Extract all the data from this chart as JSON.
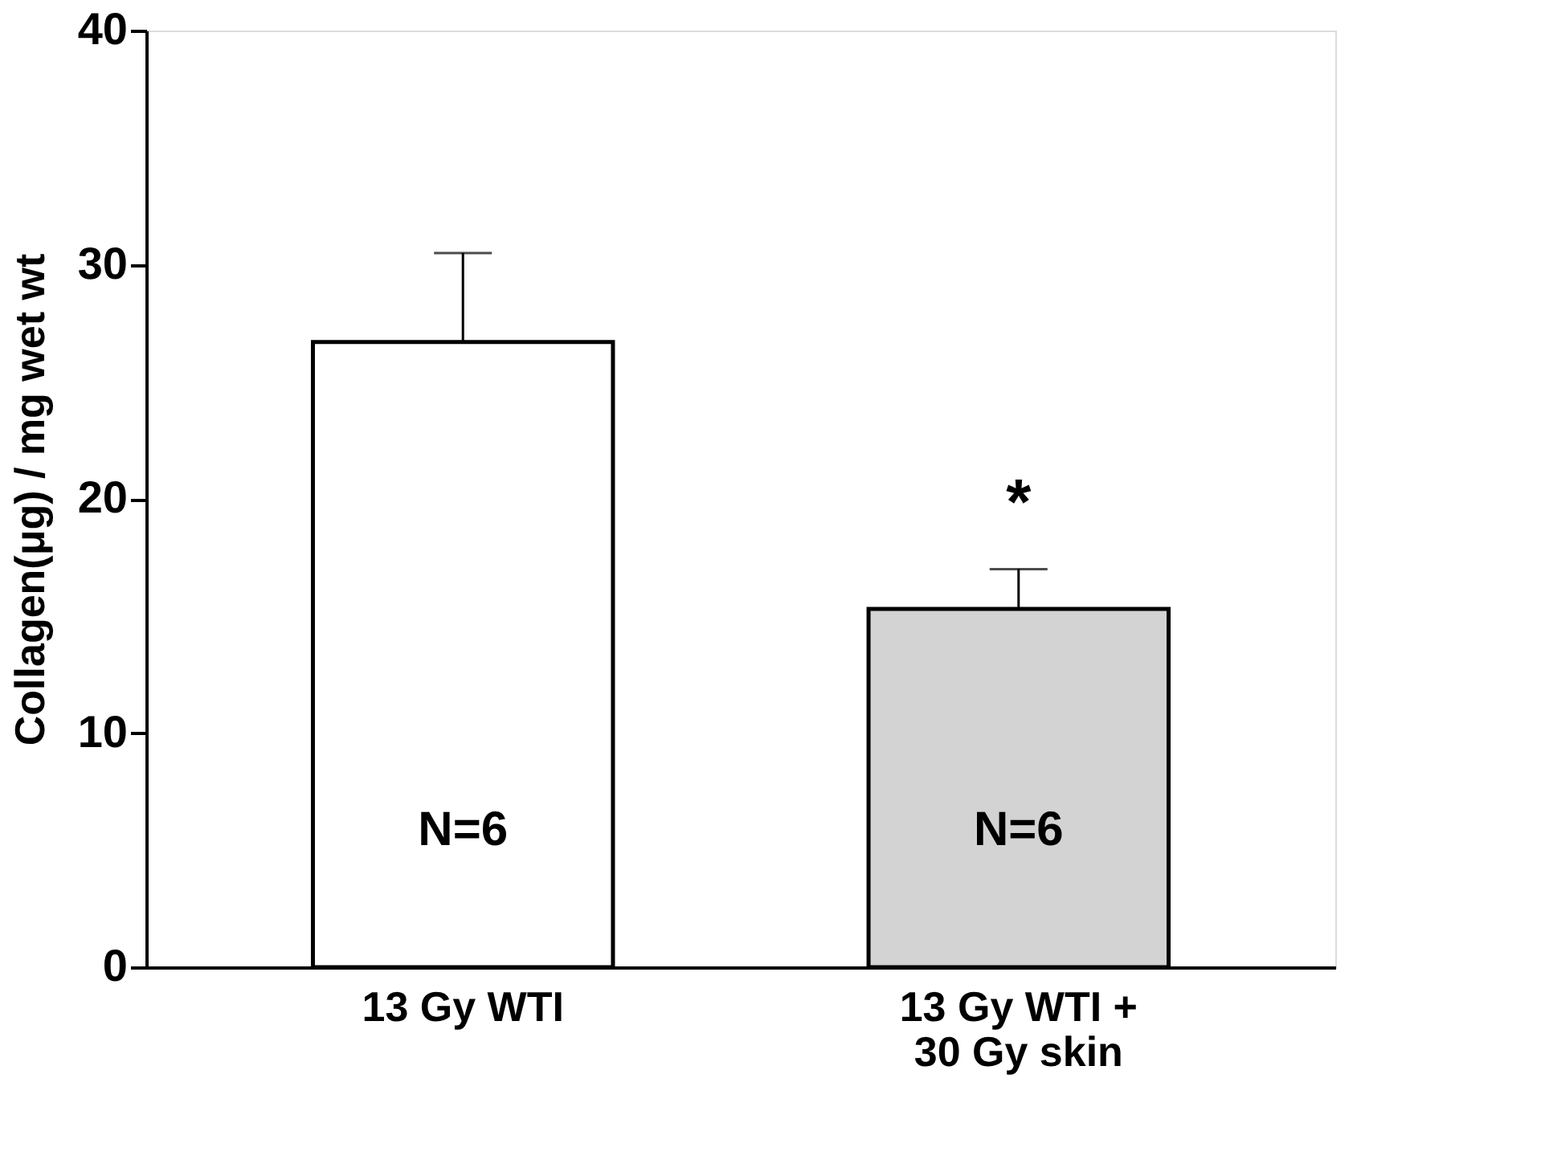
{
  "chart_data": {
    "type": "bar",
    "ylabel": "Collagen(μg) / mg wet wt",
    "categories": [
      "13 Gy WTI",
      "13 Gy WTI +\n30 Gy skin"
    ],
    "values": [
      26.7,
      15.3
    ],
    "colors": [
      "#ffffff",
      "#d3d3d3"
    ],
    "errors": [
      [
        26.7,
        30.5
      ],
      [
        15.3,
        17.0
      ]
    ],
    "ylim": [
      0,
      40
    ],
    "yticks": [
      0,
      10,
      20,
      30,
      40
    ],
    "grid": false,
    "annotations": [
      "N=6",
      "N=6",
      "*"
    ]
  }
}
